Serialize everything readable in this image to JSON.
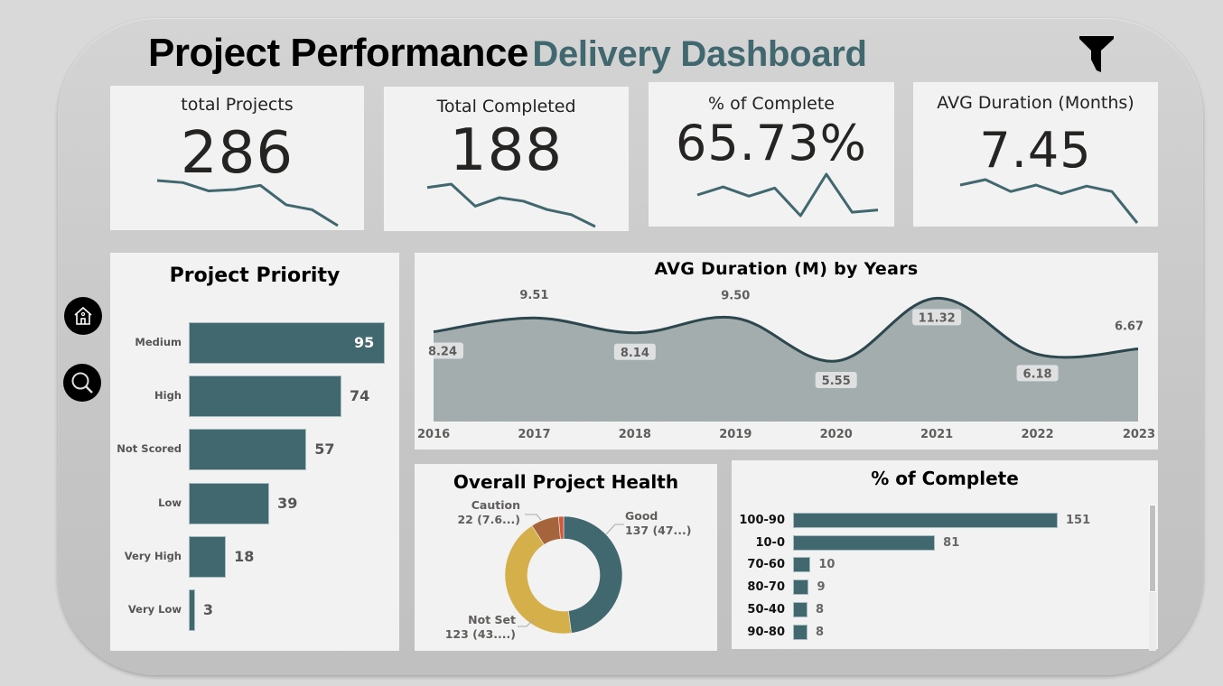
{
  "header": {
    "title_main": "Project Performance",
    "title_sub": "Delivery Dashboard",
    "filter_icon": "funnel-icon"
  },
  "nav": {
    "home_icon": "home-icon",
    "search_icon": "search-icon"
  },
  "kpis": [
    {
      "label": "total Projects",
      "value": "286",
      "trend": [
        8.5,
        8.2,
        7.0,
        7.2,
        7.8,
        5.0,
        4.3,
        2.0
      ]
    },
    {
      "label": "Total Completed",
      "value": "188",
      "trend": [
        7.2,
        7.6,
        5.0,
        6.0,
        5.6,
        4.6,
        4.0,
        2.6
      ]
    },
    {
      "label": "% of Complete",
      "value": "65.73%",
      "trend": [
        6.5,
        7.2,
        6.4,
        7.1,
        4.7,
        8.3,
        5.0,
        5.2
      ]
    },
    {
      "label": "AVG Duration (Months)",
      "value": "7.45",
      "trend": [
        8.0,
        8.5,
        7.4,
        8.0,
        7.2,
        7.9,
        7.4,
        4.5
      ]
    }
  ],
  "colors": {
    "accent": "#41676f",
    "area_fill": "#a3adae",
    "area_line": "#2c474d",
    "good": "#41676f",
    "not_set": "#d4af4a",
    "caution": "#a5643b",
    "other": "#d1583a",
    "panel": "#f2f2f2"
  },
  "chart_data": [
    {
      "type": "bar",
      "orientation": "horizontal",
      "title": "Project Priority",
      "categories": [
        "Medium",
        "High",
        "Not Scored",
        "Low",
        "Very High",
        "Very Low"
      ],
      "values": [
        95,
        74,
        57,
        39,
        18,
        3
      ],
      "data_labels": [
        "95",
        "74",
        "57",
        "39",
        "18",
        "3"
      ]
    },
    {
      "type": "area",
      "title": "AVG Duration (M) by Years",
      "x": [
        "2016",
        "2017",
        "2018",
        "2019",
        "2020",
        "2021",
        "2022",
        "2023"
      ],
      "values": [
        8.24,
        9.51,
        8.14,
        9.5,
        5.55,
        11.32,
        6.18,
        6.67
      ],
      "data_labels": [
        "8.24",
        "9.51",
        "8.14",
        "9.50",
        "5.55",
        "11.32",
        "6.18",
        "6.67"
      ],
      "ylim": [
        0,
        12
      ]
    },
    {
      "type": "pie",
      "variant": "donut",
      "title": "Overall Project Health",
      "slices": [
        {
          "name": "Good",
          "value": 137,
          "label_line1": "Good",
          "label_line2": "137 (47...)"
        },
        {
          "name": "Not Set",
          "value": 123,
          "label_line1": "Not Set",
          "label_line2": "123 (43....)"
        },
        {
          "name": "Caution",
          "value": 22,
          "label_line1": "Caution",
          "label_line2": "22 (7.6...)"
        },
        {
          "name": "Other",
          "value": 4,
          "label_line1": "",
          "label_line2": ""
        }
      ]
    },
    {
      "type": "bar",
      "orientation": "horizontal",
      "title": "% of Complete",
      "categories": [
        "100-90",
        "10-0",
        "70-60",
        "80-70",
        "50-40",
        "90-80"
      ],
      "values": [
        151,
        81,
        10,
        9,
        8,
        8
      ],
      "data_labels": [
        "151",
        "81",
        "10",
        "9",
        "8",
        "8"
      ],
      "scrollable": true
    }
  ]
}
